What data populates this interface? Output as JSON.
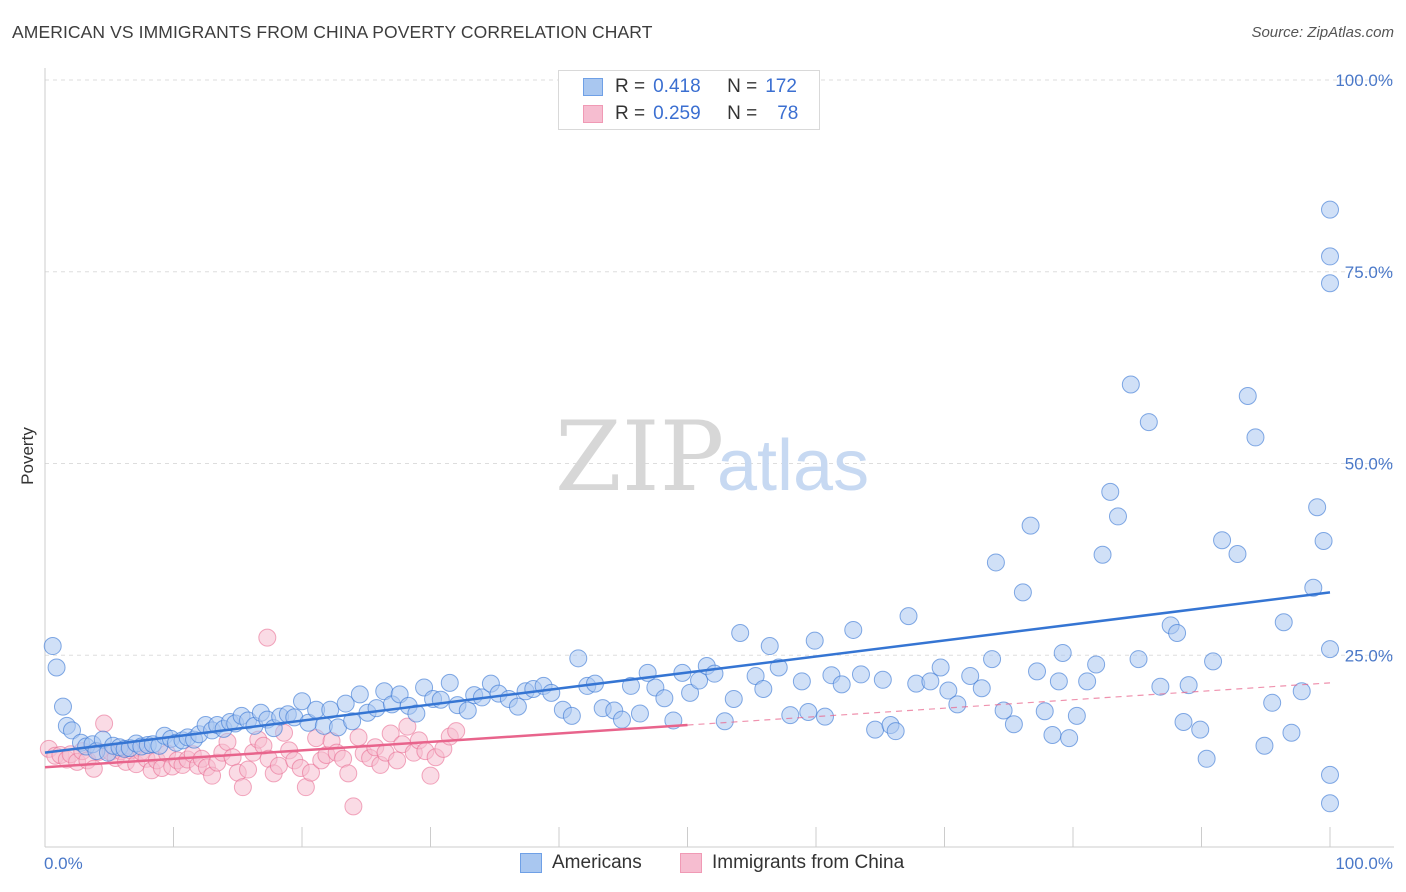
{
  "title": "AMERICAN VS IMMIGRANTS FROM CHINA POVERTY CORRELATION CHART",
  "source": "Source: ZipAtlas.com",
  "watermark": {
    "part1": "ZIP",
    "part2": "atlas"
  },
  "legend_top": [
    {
      "r_label": "R =",
      "r_value": "0.418",
      "n_label": "N =",
      "n_value": "172",
      "color": "#6fa0e6"
    },
    {
      "r_label": "R =",
      "r_value": "0.259",
      "n_label": "N =",
      "n_value": "78",
      "color": "#f09ab5"
    }
  ],
  "legend_bottom": [
    {
      "label": "Americans",
      "color": "#6fa0e6"
    },
    {
      "label": "Immigrants from China",
      "color": "#f09ab5"
    }
  ],
  "colors": {
    "blue": "#3575d3",
    "blue_fill": "#a9c7f0",
    "pink": "#e8648c",
    "pink_fill": "#f6bdd0",
    "grid": "#dddddd",
    "tick_text": "#4a78c8"
  },
  "chart_data": {
    "type": "scatter",
    "ylabel": "Poverty",
    "xlim": [
      0,
      100
    ],
    "ylim": [
      0,
      100
    ],
    "x_tick_labels": [
      "0.0%",
      "100.0%"
    ],
    "y_ticks": [
      25,
      50,
      75,
      100
    ],
    "y_tick_labels": [
      "25.0%",
      "50.0%",
      "75.0%",
      "100.0%"
    ],
    "grid": true,
    "series": [
      {
        "name": "Americans",
        "color": "#3575d3",
        "trend": {
          "x": [
            0,
            100
          ],
          "y": [
            12.3,
            33.2
          ]
        },
        "points": [
          [
            0.6,
            26.2
          ],
          [
            0.9,
            23.4
          ],
          [
            1.4,
            18.3
          ],
          [
            1.7,
            15.8
          ],
          [
            2.1,
            15.2
          ],
          [
            2.8,
            13.6
          ],
          [
            3.2,
            13.1
          ],
          [
            3.7,
            13.4
          ],
          [
            4.0,
            12.5
          ],
          [
            4.5,
            14.0
          ],
          [
            4.9,
            12.3
          ],
          [
            5.3,
            13.2
          ],
          [
            5.8,
            13.0
          ],
          [
            6.2,
            12.8
          ],
          [
            6.6,
            12.9
          ],
          [
            7.1,
            13.5
          ],
          [
            7.5,
            13.1
          ],
          [
            8.0,
            13.3
          ],
          [
            8.4,
            13.4
          ],
          [
            8.9,
            13.2
          ],
          [
            9.3,
            14.5
          ],
          [
            9.8,
            14.1
          ],
          [
            10.2,
            13.6
          ],
          [
            10.7,
            13.9
          ],
          [
            11.1,
            14.3
          ],
          [
            11.6,
            14.0
          ],
          [
            12.0,
            14.7
          ],
          [
            12.5,
            15.9
          ],
          [
            13.0,
            15.2
          ],
          [
            13.4,
            15.9
          ],
          [
            13.9,
            15.4
          ],
          [
            14.4,
            16.3
          ],
          [
            14.8,
            16.1
          ],
          [
            15.3,
            17.1
          ],
          [
            15.8,
            16.5
          ],
          [
            16.3,
            15.8
          ],
          [
            16.8,
            17.5
          ],
          [
            17.3,
            16.6
          ],
          [
            17.8,
            15.5
          ],
          [
            18.3,
            17.0
          ],
          [
            18.9,
            17.3
          ],
          [
            19.4,
            16.9
          ],
          [
            20.0,
            19.0
          ],
          [
            20.5,
            16.2
          ],
          [
            21.1,
            17.9
          ],
          [
            21.7,
            15.8
          ],
          [
            22.2,
            17.9
          ],
          [
            22.8,
            15.6
          ],
          [
            23.4,
            18.7
          ],
          [
            23.9,
            16.4
          ],
          [
            24.5,
            19.9
          ],
          [
            25.1,
            17.5
          ],
          [
            25.8,
            18.1
          ],
          [
            26.4,
            20.3
          ],
          [
            27.0,
            18.6
          ],
          [
            27.6,
            19.9
          ],
          [
            28.3,
            18.4
          ],
          [
            28.9,
            17.4
          ],
          [
            29.5,
            20.8
          ],
          [
            30.2,
            19.3
          ],
          [
            30.8,
            19.2
          ],
          [
            31.5,
            21.4
          ],
          [
            32.1,
            18.5
          ],
          [
            32.9,
            17.8
          ],
          [
            33.4,
            19.8
          ],
          [
            34.0,
            19.5
          ],
          [
            34.7,
            21.3
          ],
          [
            35.3,
            20.0
          ],
          [
            36.1,
            19.3
          ],
          [
            36.8,
            18.3
          ],
          [
            37.4,
            20.3
          ],
          [
            38.0,
            20.6
          ],
          [
            38.8,
            21.0
          ],
          [
            39.4,
            20.1
          ],
          [
            40.3,
            17.9
          ],
          [
            41.0,
            17.1
          ],
          [
            41.5,
            24.6
          ],
          [
            42.2,
            21.0
          ],
          [
            42.8,
            21.3
          ],
          [
            43.4,
            18.1
          ],
          [
            44.3,
            17.8
          ],
          [
            44.9,
            16.6
          ],
          [
            45.6,
            21.0
          ],
          [
            46.3,
            17.4
          ],
          [
            46.9,
            22.7
          ],
          [
            47.5,
            20.8
          ],
          [
            48.2,
            19.4
          ],
          [
            48.9,
            16.5
          ],
          [
            49.6,
            22.7
          ],
          [
            50.2,
            20.1
          ],
          [
            50.9,
            21.7
          ],
          [
            51.5,
            23.6
          ],
          [
            52.1,
            22.6
          ],
          [
            52.9,
            16.4
          ],
          [
            53.6,
            19.3
          ],
          [
            54.1,
            27.9
          ],
          [
            55.3,
            22.3
          ],
          [
            55.9,
            20.6
          ],
          [
            56.4,
            26.2
          ],
          [
            57.1,
            23.4
          ],
          [
            58.0,
            17.2
          ],
          [
            58.9,
            21.6
          ],
          [
            59.4,
            17.6
          ],
          [
            59.9,
            26.9
          ],
          [
            60.7,
            17.0
          ],
          [
            61.2,
            22.4
          ],
          [
            62.0,
            21.2
          ],
          [
            62.9,
            28.3
          ],
          [
            63.5,
            22.5
          ],
          [
            64.6,
            15.3
          ],
          [
            65.2,
            21.8
          ],
          [
            65.8,
            15.9
          ],
          [
            66.2,
            15.1
          ],
          [
            67.2,
            30.1
          ],
          [
            67.8,
            21.3
          ],
          [
            68.9,
            21.6
          ],
          [
            69.7,
            23.4
          ],
          [
            70.3,
            20.4
          ],
          [
            71.0,
            18.6
          ],
          [
            72.0,
            22.3
          ],
          [
            72.9,
            20.7
          ],
          [
            73.7,
            24.5
          ],
          [
            74.0,
            37.1
          ],
          [
            74.6,
            17.8
          ],
          [
            75.4,
            16.0
          ],
          [
            76.1,
            33.2
          ],
          [
            76.7,
            41.9
          ],
          [
            77.2,
            22.9
          ],
          [
            77.8,
            17.7
          ],
          [
            78.4,
            14.6
          ],
          [
            78.9,
            21.6
          ],
          [
            79.2,
            25.3
          ],
          [
            79.7,
            14.2
          ],
          [
            80.3,
            17.1
          ],
          [
            81.1,
            21.6
          ],
          [
            81.8,
            23.8
          ],
          [
            82.3,
            38.1
          ],
          [
            82.9,
            46.3
          ],
          [
            83.5,
            43.1
          ],
          [
            84.5,
            60.3
          ],
          [
            85.1,
            24.5
          ],
          [
            85.9,
            55.4
          ],
          [
            86.8,
            20.9
          ],
          [
            87.6,
            28.9
          ],
          [
            88.1,
            27.9
          ],
          [
            88.6,
            16.3
          ],
          [
            89.0,
            21.1
          ],
          [
            89.9,
            15.3
          ],
          [
            90.4,
            11.5
          ],
          [
            90.9,
            24.2
          ],
          [
            91.6,
            40.0
          ],
          [
            92.8,
            38.2
          ],
          [
            93.6,
            58.8
          ],
          [
            94.2,
            53.4
          ],
          [
            94.9,
            13.2
          ],
          [
            95.5,
            18.8
          ],
          [
            96.4,
            29.3
          ],
          [
            97.0,
            14.9
          ],
          [
            97.8,
            20.3
          ],
          [
            98.7,
            33.8
          ],
          [
            99.0,
            44.3
          ],
          [
            99.5,
            39.9
          ],
          [
            100.0,
            25.8
          ],
          [
            100.0,
            9.4
          ],
          [
            100.0,
            5.7
          ],
          [
            100.0,
            73.5
          ],
          [
            100.0,
            77.0
          ],
          [
            100.0,
            83.1
          ]
        ]
      },
      {
        "name": "Immigrants from China",
        "color": "#e8648c",
        "trend": {
          "x": [
            0,
            50
          ],
          "y": [
            10.4,
            15.9
          ]
        },
        "points": [
          [
            0.3,
            12.8
          ],
          [
            0.8,
            11.9
          ],
          [
            1.2,
            12.0
          ],
          [
            1.7,
            11.4
          ],
          [
            2.0,
            12.1
          ],
          [
            2.5,
            11.1
          ],
          [
            2.9,
            12.5
          ],
          [
            3.3,
            11.3
          ],
          [
            3.8,
            10.2
          ],
          [
            4.2,
            12.4
          ],
          [
            4.6,
            16.1
          ],
          [
            5.1,
            12.4
          ],
          [
            5.5,
            11.6
          ],
          [
            5.9,
            12.5
          ],
          [
            6.3,
            11.1
          ],
          [
            6.7,
            12.6
          ],
          [
            7.1,
            10.8
          ],
          [
            7.5,
            12.4
          ],
          [
            7.9,
            11.5
          ],
          [
            8.3,
            10.0
          ],
          [
            8.7,
            11.3
          ],
          [
            9.1,
            10.3
          ],
          [
            9.5,
            12.2
          ],
          [
            9.9,
            10.5
          ],
          [
            10.3,
            11.3
          ],
          [
            10.7,
            10.7
          ],
          [
            11.1,
            11.4
          ],
          [
            11.5,
            12.1
          ],
          [
            11.9,
            10.6
          ],
          [
            12.2,
            11.5
          ],
          [
            12.6,
            10.4
          ],
          [
            13.0,
            9.3
          ],
          [
            13.4,
            11.0
          ],
          [
            13.8,
            12.3
          ],
          [
            14.2,
            13.7
          ],
          [
            14.6,
            11.7
          ],
          [
            15.0,
            9.7
          ],
          [
            15.4,
            7.8
          ],
          [
            15.8,
            10.1
          ],
          [
            16.2,
            12.3
          ],
          [
            16.6,
            14.0
          ],
          [
            17.0,
            13.2
          ],
          [
            17.4,
            11.5
          ],
          [
            17.8,
            9.6
          ],
          [
            18.2,
            10.6
          ],
          [
            18.6,
            14.9
          ],
          [
            19.0,
            12.6
          ],
          [
            19.4,
            11.3
          ],
          [
            19.9,
            10.3
          ],
          [
            20.3,
            7.8
          ],
          [
            20.7,
            9.7
          ],
          [
            21.1,
            14.2
          ],
          [
            21.5,
            11.3
          ],
          [
            21.9,
            12.0
          ],
          [
            22.3,
            13.8
          ],
          [
            22.7,
            12.3
          ],
          [
            23.2,
            11.5
          ],
          [
            23.6,
            9.6
          ],
          [
            24.0,
            5.3
          ],
          [
            24.4,
            14.3
          ],
          [
            24.8,
            12.2
          ],
          [
            25.3,
            11.6
          ],
          [
            25.7,
            13.0
          ],
          [
            26.1,
            10.7
          ],
          [
            26.5,
            12.3
          ],
          [
            26.9,
            14.8
          ],
          [
            27.4,
            11.3
          ],
          [
            27.8,
            13.4
          ],
          [
            28.2,
            15.7
          ],
          [
            28.7,
            12.3
          ],
          [
            29.1,
            13.9
          ],
          [
            29.6,
            12.5
          ],
          [
            30.0,
            9.3
          ],
          [
            30.4,
            11.7
          ],
          [
            31.0,
            12.8
          ],
          [
            31.5,
            14.4
          ],
          [
            32.0,
            15.1
          ],
          [
            17.3,
            27.3
          ]
        ]
      }
    ]
  }
}
